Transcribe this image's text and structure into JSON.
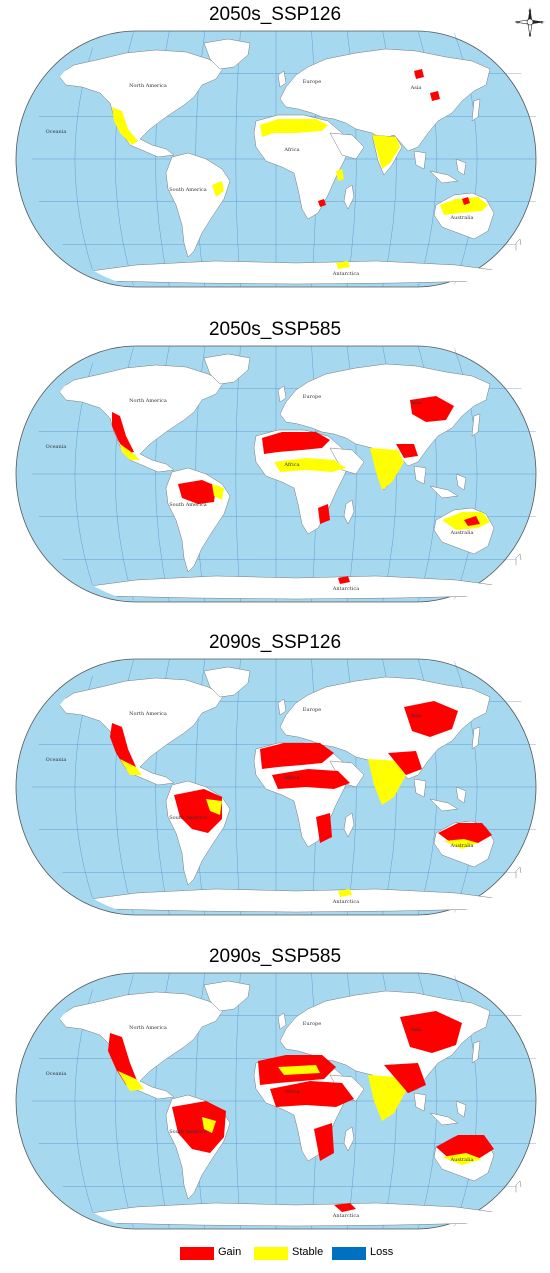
{
  "panels": [
    {
      "title": "2050s_SSP126"
    },
    {
      "title": "2050s_SSP585"
    },
    {
      "title": "2090s_SSP126"
    },
    {
      "title": "2090s_SSP585"
    }
  ],
  "map_labels": {
    "north_america": "North America",
    "europe": "Europe",
    "asia": "Asia",
    "africa": "Africa",
    "south_america": "South America",
    "oceania": "Oceania",
    "australia": "Australia",
    "antarctica": "Antarctica"
  },
  "compass": {
    "n": "N",
    "s": "S",
    "e": "E",
    "w": "W"
  },
  "legend": [
    {
      "label": "Gain",
      "color": "#ff0000"
    },
    {
      "label": "Stable",
      "color": "#ffff00"
    },
    {
      "label": "Loss",
      "color": "#0070c0"
    }
  ],
  "colors": {
    "ocean": "#a6d9f0",
    "land": "#ffffff",
    "gain": "#ff0000",
    "stable": "#ffff00",
    "grid": "#2b6fb6"
  }
}
